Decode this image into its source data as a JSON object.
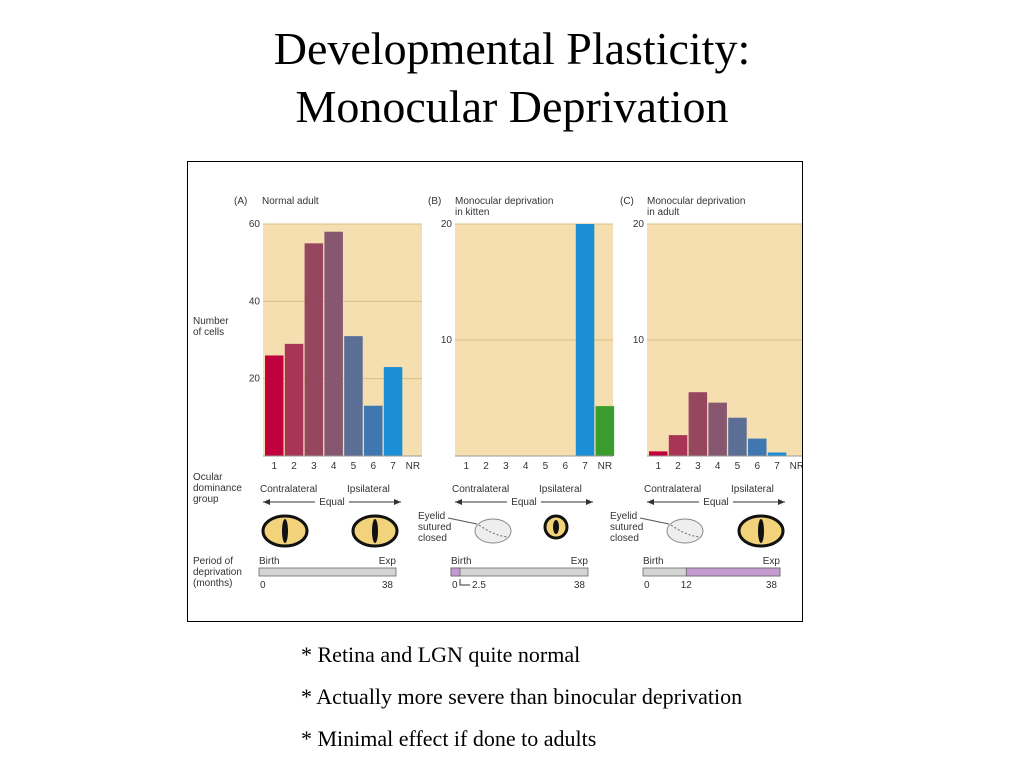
{
  "title": {
    "line1": "Developmental Plasticity:",
    "line2": "Monocular Deprivation"
  },
  "figure": {
    "colors": {
      "panel_bg": "#f5deb0",
      "grid": "#d8c08a",
      "bars": [
        "#c2003e",
        "#a83555",
        "#96475f",
        "#86576e",
        "#5a6e96",
        "#3f78b0",
        "#1a8fd6"
      ],
      "nr_bar": "#3b9c2e",
      "timeline_gray": "#d4d4d4",
      "timeline_purple": "#c49ad0"
    },
    "ylabel": "Number\nof cells",
    "ocular_label": "Ocular\ndominance\ngroup",
    "period_label": "Period of\ndeprivation\n(months)",
    "eyelid_label": "Eyelid\nsutured\nclosed",
    "contralateral": "Contralateral",
    "ipsilateral": "Ipsilateral",
    "equal": "Equal",
    "birth": "Birth",
    "exp": "Exp",
    "icons": [
      "open-cat-eye-icon",
      "sutured-eye-icon",
      "open-cat-eye-icon"
    ]
  },
  "chart_data": [
    {
      "type": "bar",
      "panel": "(A)",
      "title": "Normal adult",
      "categories": [
        "1",
        "2",
        "3",
        "4",
        "5",
        "6",
        "7",
        "NR"
      ],
      "values": [
        26,
        29,
        55,
        58,
        31,
        13,
        23,
        0
      ],
      "ylim": [
        0,
        60
      ],
      "yticks": [
        "20",
        "40",
        "60"
      ],
      "timeline": {
        "start": "0",
        "end": "38",
        "deprived_from": null,
        "deprived_to": null,
        "extra_tick": null
      }
    },
    {
      "type": "bar",
      "panel": "(B)",
      "title": "Monocular deprivation\nin kitten",
      "categories": [
        "1",
        "2",
        "3",
        "4",
        "5",
        "6",
        "7",
        "NR"
      ],
      "values": [
        0,
        0,
        0,
        0,
        0,
        0,
        20,
        4.3
      ],
      "ylim": [
        0,
        20
      ],
      "yticks": [
        "10",
        "20"
      ],
      "timeline": {
        "start": "0",
        "end": "38",
        "deprived_from": 0,
        "deprived_to": 2.5,
        "extra_tick": "2.5"
      }
    },
    {
      "type": "bar",
      "panel": "(C)",
      "title": "Monocular deprivation\nin adult",
      "categories": [
        "1",
        "2",
        "3",
        "4",
        "5",
        "6",
        "7",
        "NR"
      ],
      "values": [
        0.4,
        1.8,
        5.5,
        4.6,
        3.3,
        1.5,
        0.3,
        0
      ],
      "ylim": [
        0,
        20
      ],
      "yticks": [
        "10",
        "20"
      ],
      "timeline": {
        "start": "0",
        "end": "38",
        "deprived_from": 12,
        "deprived_to": 38,
        "extra_tick": "12"
      }
    }
  ],
  "bullets": [
    "* Retina and LGN quite normal",
    "* Actually more severe than binocular deprivation",
    "* Minimal effect if done to adults"
  ]
}
